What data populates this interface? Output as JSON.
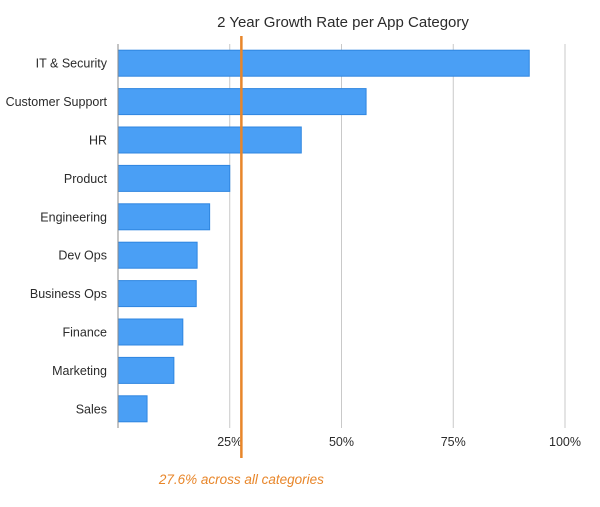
{
  "chart_data": {
    "type": "bar",
    "orientation": "horizontal",
    "title": "2 Year Growth Rate per App Category",
    "xlabel": "",
    "ylabel": "",
    "categories": [
      "IT & Security",
      "Customer Support",
      "HR",
      "Product",
      "Engineering",
      "Dev Ops",
      "Business Ops",
      "Finance",
      "Marketing",
      "Sales"
    ],
    "values": [
      92,
      55.5,
      41,
      25,
      20.5,
      17.7,
      17.5,
      14.5,
      12.5,
      6.5
    ],
    "xlim": [
      0,
      100
    ],
    "x_ticks": [
      25,
      50,
      75,
      100
    ],
    "x_tick_labels": [
      "25%",
      "50%",
      "75%",
      "100%"
    ],
    "grid": "vertical",
    "bar_color": "#4a9ff5",
    "bar_edge_color": "#2f86e0",
    "reference_line": {
      "value": 27.6,
      "label": "27.6% across all categories",
      "color": "#e8862a"
    }
  }
}
